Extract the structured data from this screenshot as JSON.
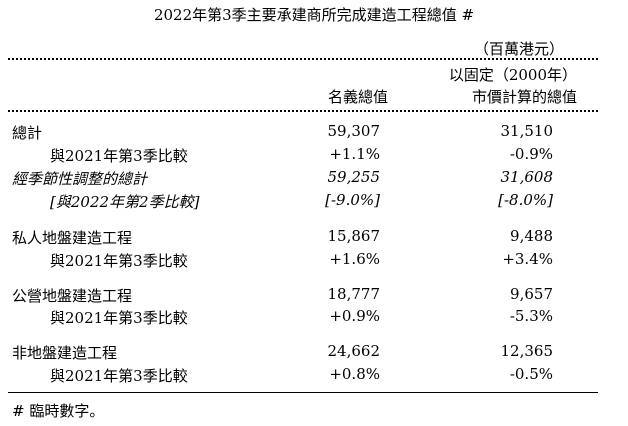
{
  "title": "2022年第3季主要承建商所完成建造工程總值 #",
  "unit": "（百萬港元）",
  "columns": {
    "nominal": "名義總值",
    "constant_line1": "以固定（2000年）",
    "constant_line2": "市價計算的總值"
  },
  "rows": [
    {
      "label": "總計",
      "nominal": "59,307",
      "constant": "31,510",
      "indent": false,
      "italic": false
    },
    {
      "label": "與2021年第3季比較",
      "nominal": "+1.1%",
      "constant": "-0.9%",
      "indent": true,
      "italic": false
    },
    {
      "label": "經季節性調整的總計",
      "nominal": "59,255",
      "constant": "31,608",
      "indent": false,
      "italic": true
    },
    {
      "label": "[與2022年第2季比較]",
      "nominal": "[-9.0%]",
      "constant": "[-8.0%]",
      "indent": true,
      "italic": true
    },
    {
      "label": "私人地盤建造工程",
      "nominal": "15,867",
      "constant": "9,488",
      "indent": false,
      "italic": false
    },
    {
      "label": "與2021年第3季比較",
      "nominal": "+1.6%",
      "constant": "+3.4%",
      "indent": true,
      "italic": false
    },
    {
      "label": "公營地盤建造工程",
      "nominal": "18,777",
      "constant": "9,657",
      "indent": false,
      "italic": false
    },
    {
      "label": "與2021年第3季比較",
      "nominal": "+0.9%",
      "constant": "-5.3%",
      "indent": true,
      "italic": false
    },
    {
      "label": "非地盤建造工程",
      "nominal": "24,662",
      "constant": "12,365",
      "indent": false,
      "italic": false
    },
    {
      "label": "與2021年第3季比較",
      "nominal": "+0.8%",
      "constant": "-0.5%",
      "indent": true,
      "italic": false
    }
  ],
  "footnote": "# 臨時數字。"
}
